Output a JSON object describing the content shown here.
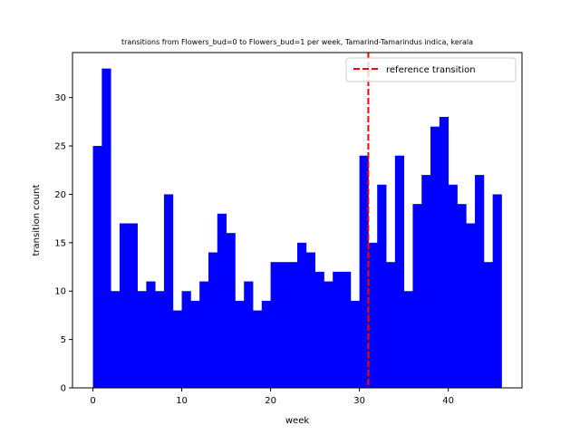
{
  "chart_data": {
    "type": "bar",
    "title": "transitions from Flowers_bud=0 to Flowers_bud=1 per week, Tamarind-Tamarindus indica, kerala",
    "xlabel": "week",
    "ylabel": "transition count",
    "xlim": [
      -2.3,
      48.3
    ],
    "ylim": [
      0,
      34.65
    ],
    "xticks": [
      0,
      10,
      20,
      30,
      40
    ],
    "yticks": [
      0,
      5,
      10,
      15,
      20,
      25,
      30
    ],
    "bin_edges_start": 0,
    "bin_width": 1,
    "values": [
      25,
      33,
      10,
      17,
      17,
      10,
      11,
      10,
      20,
      8,
      10,
      9,
      11,
      14,
      18,
      16,
      9,
      11,
      8,
      9,
      13,
      13,
      13,
      15,
      14,
      12,
      11,
      12,
      12,
      9,
      24,
      15,
      21,
      13,
      24,
      10,
      19,
      22,
      27,
      28,
      21,
      19,
      17,
      22,
      13,
      20
    ],
    "bar_color": "#0000ff",
    "reference_line": {
      "x": 31,
      "label": "reference transition",
      "color": "#ff0000",
      "style": "dashed"
    },
    "legend_position": "top-right",
    "grid": false
  }
}
